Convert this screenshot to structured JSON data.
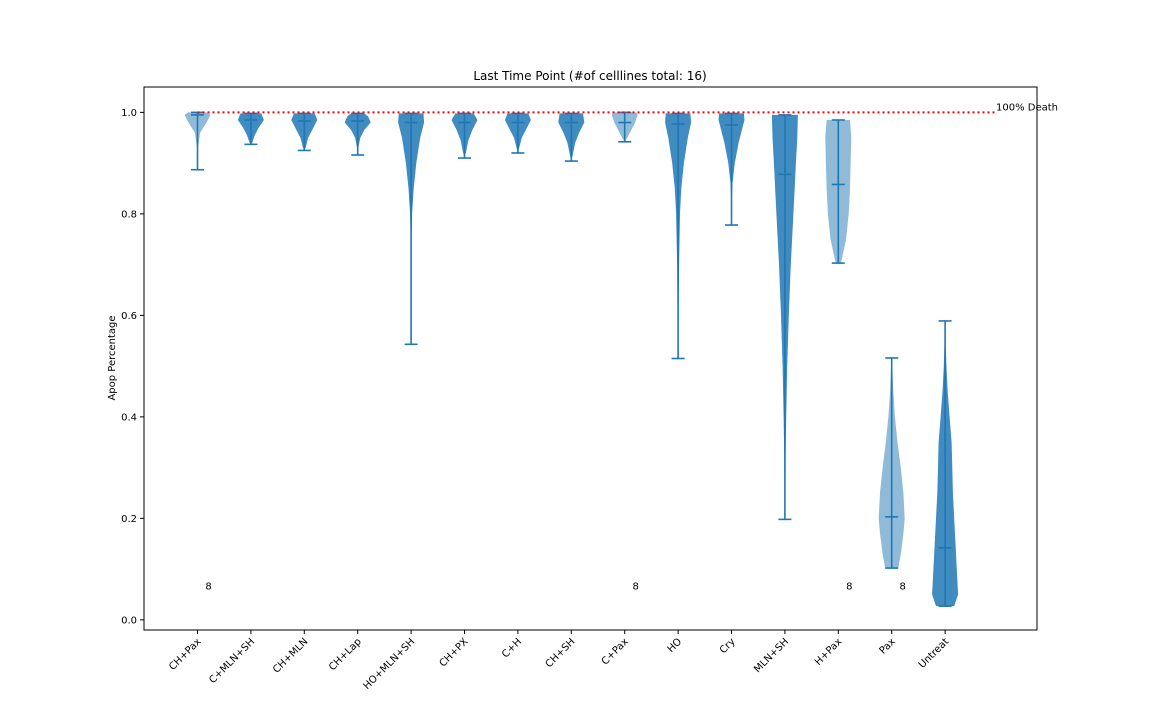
{
  "chart_data": {
    "type": "violin",
    "title": "Last Time Point (#of celllines total: 16)",
    "xlabel": "",
    "ylabel": "Apop Percentage",
    "ylim": [
      -0.02,
      1.05
    ],
    "yticks": [
      0.0,
      0.2,
      0.4,
      0.6,
      0.8,
      1.0
    ],
    "ytick_labels": [
      "0.0",
      "0.2",
      "0.4",
      "0.6",
      "0.8",
      "1.0"
    ],
    "grid": false,
    "reference_line": {
      "y": 1.0,
      "label": "100% Death",
      "color": "#ff0000",
      "style": "dotted"
    },
    "colors": {
      "solid": "#1f77b4",
      "light": "#6fa8d6"
    },
    "categories": [
      "CH+Pax",
      "C+MLN+SH",
      "CH+MLN",
      "CH+Lap",
      "HO+MLN+SH",
      "CH+PX",
      "C+H",
      "CH+SH",
      "C+Pax",
      "HO",
      "Cry",
      "MLN+SH",
      "H+Pax",
      "Pax",
      "Untreat"
    ],
    "violins": [
      {
        "category": "CH+Pax",
        "min": 0.887,
        "max": 1.0,
        "median": 0.995,
        "light": true,
        "count_label": "8",
        "profile": [
          [
            0.887,
            0.0
          ],
          [
            0.9,
            0.01
          ],
          [
            0.93,
            0.04
          ],
          [
            0.96,
            0.2
          ],
          [
            0.98,
            0.7
          ],
          [
            0.995,
            1.0
          ],
          [
            1.0,
            0.7
          ]
        ]
      },
      {
        "category": "C+MLN+SH",
        "min": 0.937,
        "max": 0.998,
        "median": 0.985,
        "light": false,
        "count_label": "",
        "profile": [
          [
            0.937,
            0.0
          ],
          [
            0.94,
            0.1
          ],
          [
            0.955,
            0.3
          ],
          [
            0.97,
            0.6
          ],
          [
            0.985,
            1.0
          ],
          [
            0.998,
            0.8
          ]
        ]
      },
      {
        "category": "CH+MLN",
        "min": 0.925,
        "max": 0.998,
        "median": 0.983,
        "light": false,
        "count_label": "",
        "profile": [
          [
            0.925,
            0.0
          ],
          [
            0.93,
            0.1
          ],
          [
            0.95,
            0.3
          ],
          [
            0.97,
            0.7
          ],
          [
            0.985,
            1.0
          ],
          [
            0.998,
            0.8
          ]
        ]
      },
      {
        "category": "CH+Lap",
        "min": 0.916,
        "max": 0.998,
        "median": 0.983,
        "light": false,
        "count_label": "",
        "profile": [
          [
            0.916,
            0.0
          ],
          [
            0.93,
            0.05
          ],
          [
            0.95,
            0.2
          ],
          [
            0.965,
            0.5
          ],
          [
            0.98,
            1.0
          ],
          [
            0.992,
            0.8
          ],
          [
            0.998,
            0.5
          ]
        ]
      },
      {
        "category": "HO+MLN+SH",
        "min": 0.543,
        "max": 0.998,
        "median": 0.98,
        "light": false,
        "count_label": "",
        "profile": [
          [
            0.543,
            0.0
          ],
          [
            0.65,
            0.01
          ],
          [
            0.75,
            0.03
          ],
          [
            0.8,
            0.08
          ],
          [
            0.85,
            0.2
          ],
          [
            0.9,
            0.4
          ],
          [
            0.95,
            0.7
          ],
          [
            0.98,
            1.0
          ],
          [
            0.998,
            0.95
          ]
        ]
      },
      {
        "category": "CH+PX",
        "min": 0.91,
        "max": 0.998,
        "median": 0.98,
        "light": false,
        "count_label": "",
        "profile": [
          [
            0.91,
            0.0
          ],
          [
            0.92,
            0.1
          ],
          [
            0.945,
            0.3
          ],
          [
            0.965,
            0.6
          ],
          [
            0.985,
            1.0
          ],
          [
            0.998,
            0.7
          ]
        ]
      },
      {
        "category": "C+H",
        "min": 0.92,
        "max": 0.998,
        "median": 0.98,
        "light": false,
        "count_label": "",
        "profile": [
          [
            0.92,
            0.0
          ],
          [
            0.93,
            0.1
          ],
          [
            0.95,
            0.3
          ],
          [
            0.97,
            0.7
          ],
          [
            0.985,
            1.0
          ],
          [
            0.998,
            0.8
          ]
        ]
      },
      {
        "category": "CH+SH",
        "min": 0.904,
        "max": 0.998,
        "median": 0.98,
        "light": false,
        "count_label": "",
        "profile": [
          [
            0.904,
            0.0
          ],
          [
            0.915,
            0.1
          ],
          [
            0.94,
            0.3
          ],
          [
            0.96,
            0.6
          ],
          [
            0.98,
            1.0
          ],
          [
            0.998,
            0.9
          ]
        ]
      },
      {
        "category": "C+Pax",
        "min": 0.942,
        "max": 1.0,
        "median": 0.98,
        "light": true,
        "count_label": "8",
        "profile": [
          [
            0.942,
            0.0
          ],
          [
            0.95,
            0.2
          ],
          [
            0.965,
            0.5
          ],
          [
            0.98,
            0.8
          ],
          [
            0.995,
            1.0
          ],
          [
            1.0,
            0.9
          ]
        ]
      },
      {
        "category": "HO",
        "min": 0.515,
        "max": 0.998,
        "median": 0.977,
        "light": false,
        "count_label": "",
        "profile": [
          [
            0.515,
            0.0
          ],
          [
            0.6,
            0.04
          ],
          [
            0.7,
            0.08
          ],
          [
            0.8,
            0.15
          ],
          [
            0.85,
            0.25
          ],
          [
            0.9,
            0.45
          ],
          [
            0.95,
            0.75
          ],
          [
            0.98,
            1.0
          ],
          [
            0.998,
            0.95
          ]
        ]
      },
      {
        "category": "Cry",
        "min": 0.778,
        "max": 0.998,
        "median": 0.975,
        "light": false,
        "count_label": "",
        "profile": [
          [
            0.778,
            0.0
          ],
          [
            0.82,
            0.02
          ],
          [
            0.86,
            0.08
          ],
          [
            0.9,
            0.25
          ],
          [
            0.94,
            0.55
          ],
          [
            0.97,
            0.85
          ],
          [
            0.985,
            1.0
          ],
          [
            0.998,
            0.95
          ]
        ]
      },
      {
        "category": "MLN+SH",
        "min": 0.198,
        "max": 0.995,
        "median": 0.878,
        "light": false,
        "count_label": "",
        "profile": [
          [
            0.198,
            0.0
          ],
          [
            0.3,
            0.04
          ],
          [
            0.4,
            0.1
          ],
          [
            0.5,
            0.18
          ],
          [
            0.6,
            0.3
          ],
          [
            0.7,
            0.45
          ],
          [
            0.8,
            0.65
          ],
          [
            0.9,
            0.85
          ],
          [
            0.95,
            0.95
          ],
          [
            0.995,
            1.0
          ]
        ]
      },
      {
        "category": "H+Pax",
        "min": 0.703,
        "max": 0.985,
        "median": 0.858,
        "light": true,
        "count_label": "8",
        "profile": [
          [
            0.703,
            0.2
          ],
          [
            0.75,
            0.6
          ],
          [
            0.8,
            0.8
          ],
          [
            0.85,
            0.9
          ],
          [
            0.9,
            0.95
          ],
          [
            0.95,
            1.0
          ],
          [
            0.985,
            0.9
          ]
        ]
      },
      {
        "category": "Pax",
        "min": 0.102,
        "max": 0.516,
        "median": 0.203,
        "light": true,
        "count_label": "8",
        "profile": [
          [
            0.102,
            0.5
          ],
          [
            0.13,
            0.7
          ],
          [
            0.17,
            0.9
          ],
          [
            0.2,
            1.0
          ],
          [
            0.25,
            0.9
          ],
          [
            0.3,
            0.7
          ],
          [
            0.35,
            0.45
          ],
          [
            0.4,
            0.25
          ],
          [
            0.45,
            0.12
          ],
          [
            0.5,
            0.05
          ],
          [
            0.516,
            0.03
          ]
        ]
      },
      {
        "category": "Untreat",
        "min": 0.027,
        "max": 0.589,
        "median": 0.142,
        "light": false,
        "count_label": "",
        "profile": [
          [
            0.027,
            0.7
          ],
          [
            0.05,
            1.0
          ],
          [
            0.1,
            0.9
          ],
          [
            0.15,
            0.8
          ],
          [
            0.2,
            0.7
          ],
          [
            0.25,
            0.6
          ],
          [
            0.3,
            0.55
          ],
          [
            0.35,
            0.5
          ],
          [
            0.4,
            0.35
          ],
          [
            0.45,
            0.2
          ],
          [
            0.5,
            0.1
          ],
          [
            0.55,
            0.04
          ],
          [
            0.589,
            0.0
          ]
        ]
      }
    ]
  }
}
